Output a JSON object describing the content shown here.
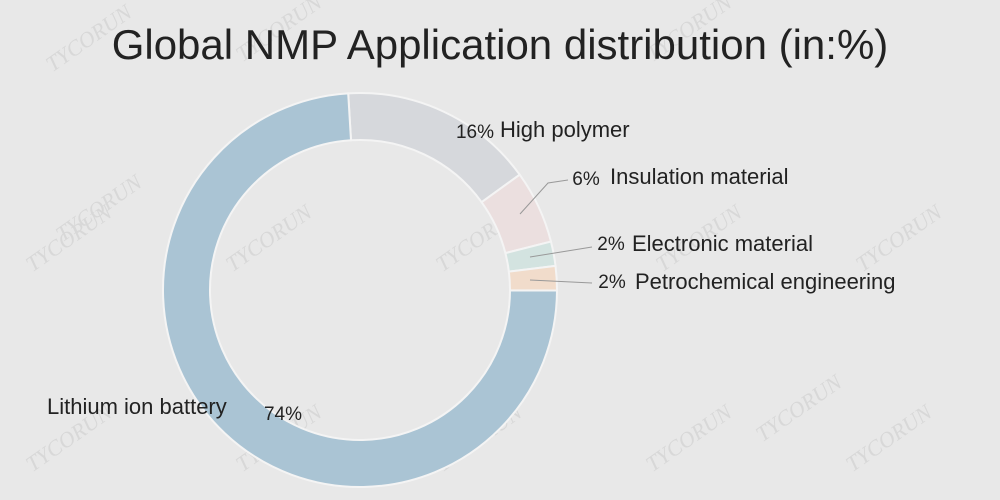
{
  "chart_data": {
    "type": "donut",
    "title": "Global NMP Application distribution (in:%)",
    "categories": [
      "High polymer",
      "Insulation material",
      "Electronic material",
      "Petrochemical engineering",
      "Lithium ion battery"
    ],
    "values": [
      16,
      6,
      2,
      2,
      74
    ],
    "value_labels": [
      "16%",
      "6%",
      "2%",
      "2%",
      "74%"
    ],
    "colors": [
      "#d6d8dc",
      "#ebdfdf",
      "#d3e3e0",
      "#f1dccb",
      "#aac4d4"
    ],
    "watermark": "TYCORUN"
  }
}
